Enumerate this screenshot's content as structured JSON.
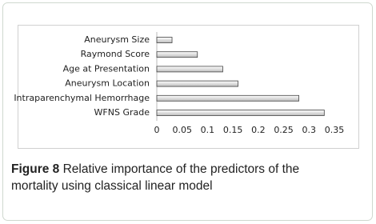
{
  "chart_data": {
    "type": "bar",
    "orientation": "horizontal",
    "categories": [
      "Aneurysm Size",
      "Raymond Score",
      "Age at Presentation",
      "Aneurysm Location",
      "Intraparenchymal Hemorrhage",
      "WFNS Grade"
    ],
    "values": [
      0.03,
      0.08,
      0.13,
      0.16,
      0.28,
      0.33
    ],
    "color": "#e4e4e4",
    "xlim": [
      0,
      0.35
    ],
    "xticks": [
      0,
      0.05,
      0.1,
      0.15,
      0.2,
      0.25,
      0.3,
      0.35
    ]
  },
  "caption": {
    "label": "Figure 8",
    "text": "Relative importance of the predictors of the mortality using classical linear model"
  }
}
